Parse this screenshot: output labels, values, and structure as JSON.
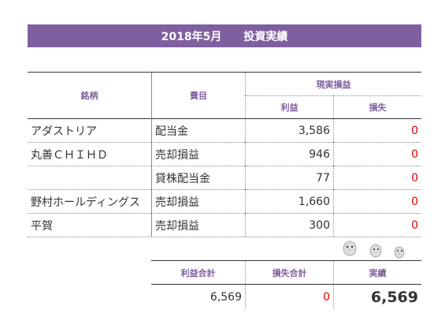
{
  "header": {
    "title": "2018年5月　　投資実績"
  },
  "table": {
    "headers": {
      "name": "銘柄",
      "item": "費目",
      "group": "現実損益",
      "profit": "利益",
      "loss": "損失"
    },
    "rows": [
      [
        "アダストリア",
        "配当金",
        "3,586",
        "0"
      ],
      [
        "丸善ＣＨＩＨＤ",
        "売却損益",
        "946",
        "0"
      ],
      [
        null,
        "貸株配当金",
        "77",
        "0"
      ],
      [
        "野村ホールディングス",
        "売却損益",
        "1,660",
        "0"
      ],
      [
        "平賀",
        "売却損益",
        "300",
        "0"
      ]
    ]
  },
  "summary": {
    "headers": [
      "利益合計",
      "損失合計",
      "実績"
    ],
    "values": [
      "6,569",
      "0",
      "6,569"
    ]
  }
}
